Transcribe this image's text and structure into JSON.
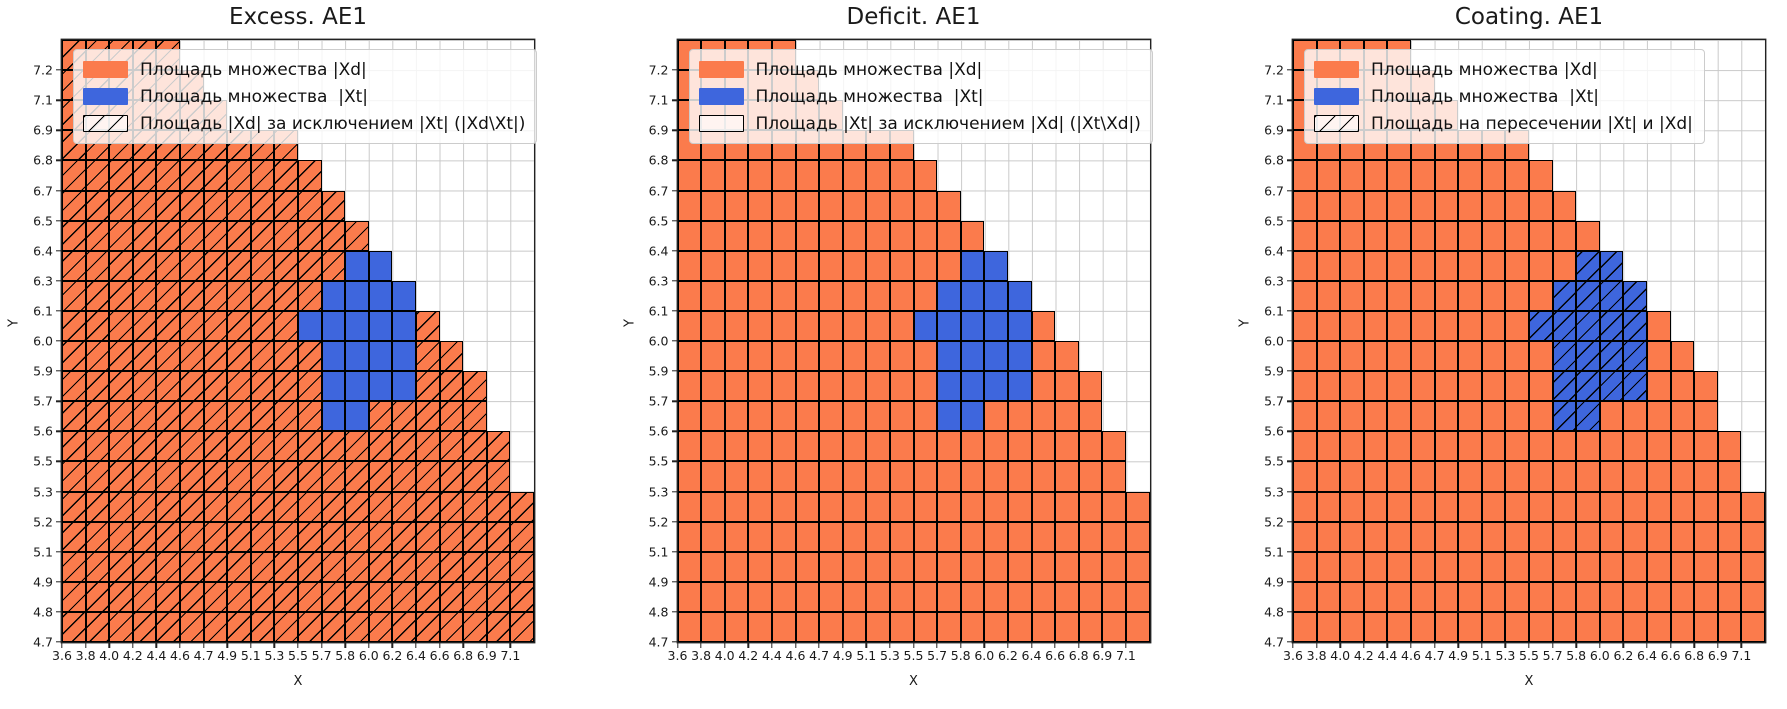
{
  "chart_data": {
    "type": "heatmap",
    "subplots": [
      {
        "title": "Excess. AE1",
        "hatch_cells": "o",
        "hatch_meaning": "hatched area = Xd cells excluding Xt",
        "legend": [
          {
            "swatch": "xd",
            "label": "Площадь множества |Xd|"
          },
          {
            "swatch": "xt",
            "label": "Площадь множества  |Xt|"
          },
          {
            "swatch": "hatch",
            "label": "Площадь |Xd| за исключением |Xt| (|Xd\\Xt|)"
          }
        ]
      },
      {
        "title": "Deficit. AE1",
        "hatch_cells": "",
        "hatch_meaning": "Xt minus Xd is empty, no hatched cells",
        "legend": [
          {
            "swatch": "xd",
            "label": "Площадь множества |Xd|"
          },
          {
            "swatch": "xt",
            "label": "Площадь множества  |Xt|"
          },
          {
            "swatch": "empty",
            "label": "Площадь |Xt| за исключением |Xd| (|Xt\\Xd|)"
          }
        ]
      },
      {
        "title": "Coating. AE1",
        "hatch_cells": "b",
        "hatch_meaning": "hatched area = intersection of Xt and Xd",
        "legend": [
          {
            "swatch": "xd",
            "label": "Площадь множества |Xd|"
          },
          {
            "swatch": "xt",
            "label": "Площадь множества  |Xt|"
          },
          {
            "swatch": "hatch",
            "label": "Площадь на пересечении |Xt| и |Xd|"
          }
        ]
      }
    ],
    "xlabel": "X",
    "ylabel": "Y",
    "x_categories": [
      "3.6",
      "3.8",
      "4.0",
      "4.2",
      "4.4",
      "4.6",
      "4.7",
      "4.9",
      "5.1",
      "5.3",
      "5.5",
      "5.7",
      "5.8",
      "6.0",
      "6.2",
      "6.4",
      "6.6",
      "6.8",
      "6.9",
      "7.1"
    ],
    "y_categories": [
      "7.2",
      "7.1",
      "6.9",
      "6.8",
      "6.7",
      "6.5",
      "6.4",
      "6.3",
      "6.1",
      "6.0",
      "5.9",
      "5.7",
      "5.6",
      "5.5",
      "5.3",
      "5.2",
      "5.1",
      "4.9",
      "4.8",
      "4.7"
    ],
    "cell_codes": {
      "o": "|Xd| set (orange)",
      "b": "|Xt| set (blue)",
      ".": "empty"
    },
    "grid_rows": [
      "ooooo...............",
      "oooooo..............",
      "ooooooo.............",
      "oooooooooo..........",
      "ooooooooooo.........",
      "oooooooooooo........",
      "ooooooooooooo.......",
      "oooooooooooobb......",
      "ooooooooooobbbb.....",
      "oooooooooobbbbbo....",
      "ooooooooooobbbboo...",
      "ooooooooooobbbbooo..",
      "ooooooooooobbooooo..",
      "ooooooooooooooooooo.",
      "ooooooooooooooooooo.",
      "oooooooooooooooooooo",
      "oooooooooooooooooooo",
      "oooooooooooooooooooo",
      "oooooooooooooooooooo",
      "oooooooooooooooooooo"
    ],
    "colors": {
      "xd": "#fb7b4c",
      "xt": "#3e66dd",
      "grid_line": "#c9c9c9",
      "cell_edge": "#000000",
      "axes_edge": "#222222",
      "hatch": "#000000",
      "legend_bg": "rgba(255,255,255,0.8)",
      "legend_edge": "#cccccc"
    }
  }
}
